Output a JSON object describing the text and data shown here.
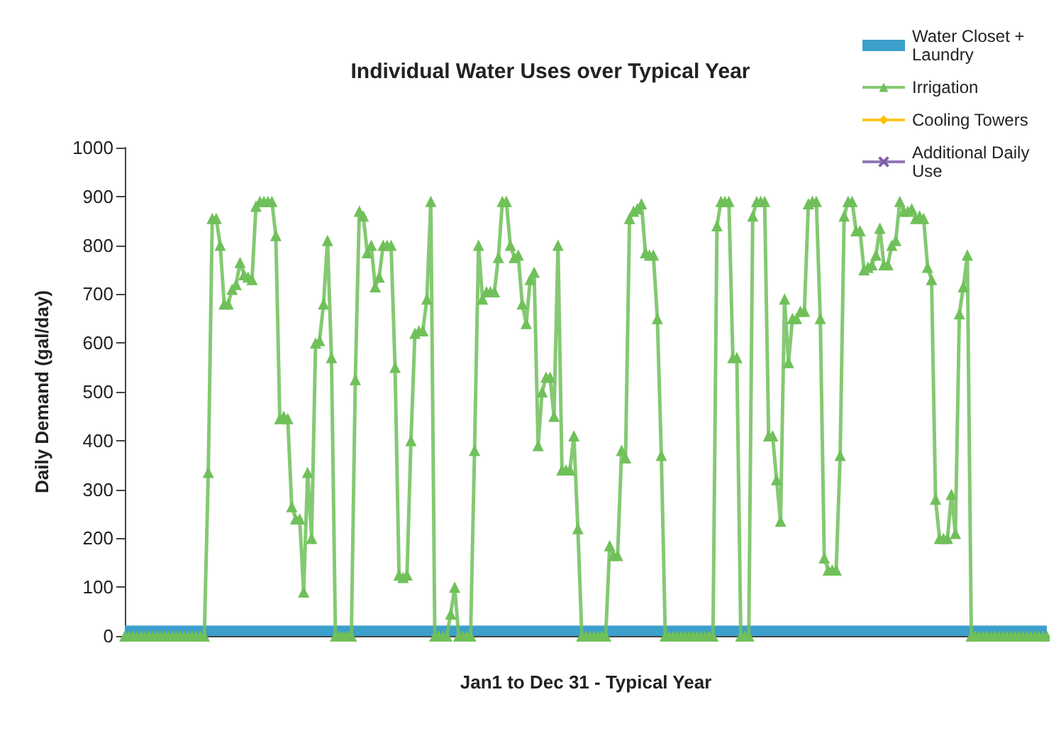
{
  "chart_data": {
    "type": "line",
    "title": "Individual Water Uses over Typical Year",
    "xlabel": "Jan1 to Dec 31 - Typical Year",
    "ylabel": "Daily Demand (gal/day)",
    "categories": [
      null,
      null,
      null,
      null,
      null,
      null,
      null,
      null,
      null,
      null,
      null,
      null,
      null,
      null,
      null,
      null,
      null,
      null,
      null,
      null,
      null,
      null,
      null,
      null,
      null,
      null,
      null,
      null,
      null,
      null,
      null,
      null,
      null,
      null,
      null,
      null,
      null,
      null,
      null,
      null,
      null,
      null,
      null,
      null,
      null,
      null,
      null,
      null,
      null,
      null,
      null,
      null,
      null,
      null,
      null,
      null,
      null,
      null,
      null,
      null,
      null,
      null,
      null,
      null,
      null,
      null,
      null,
      null,
      null,
      null,
      null,
      null,
      null,
      null,
      null,
      null,
      null,
      null,
      null,
      null,
      null,
      null,
      null,
      null,
      null,
      null,
      null,
      null,
      null,
      null,
      null,
      null,
      null,
      null,
      null,
      null,
      null,
      null,
      null,
      null,
      null,
      null,
      null,
      null,
      null,
      null,
      null,
      null,
      null,
      null,
      null,
      null,
      null,
      null,
      null,
      null,
      null,
      null,
      null,
      null,
      null,
      null,
      null,
      null,
      null,
      null,
      null,
      null,
      null,
      null,
      null,
      null,
      null,
      null,
      null,
      null,
      null,
      null,
      null,
      null,
      null,
      null,
      null,
      null,
      null,
      null,
      null,
      null,
      null,
      null,
      null,
      null,
      null,
      null,
      null,
      null,
      null,
      null,
      null,
      null,
      null,
      null,
      null,
      null,
      null,
      null,
      null,
      null,
      null,
      null,
      null,
      null,
      null,
      null,
      null,
      null,
      null,
      null,
      null,
      null,
      null,
      null,
      null,
      null,
      null,
      null,
      null,
      null,
      null,
      null,
      null,
      null,
      null,
      null,
      null,
      null,
      null,
      null,
      null,
      null,
      null,
      null,
      null,
      null,
      null,
      null,
      null,
      null,
      null,
      null,
      null,
      null,
      null,
      null,
      null,
      null,
      null,
      null,
      null,
      null,
      null,
      null,
      null,
      null,
      null,
      null,
      null,
      null,
      null,
      null,
      null,
      null,
      null
    ],
    "ylim": [
      0,
      1000
    ],
    "yticks": [
      0,
      100,
      200,
      300,
      400,
      500,
      600,
      700,
      800,
      900,
      1000
    ],
    "tick_labels": "y",
    "grid": false,
    "legend": "top right",
    "series": [
      {
        "name": "Water Closet + Laundry",
        "type": "area",
        "color": "#3c9fcc",
        "marker": "none",
        "values": [
          20,
          20,
          20,
          20,
          20,
          20,
          20,
          20,
          20,
          20,
          20,
          20,
          20,
          20,
          20,
          20,
          20,
          20,
          20,
          20,
          20,
          20,
          20,
          20,
          20,
          20,
          20,
          20,
          20,
          20,
          20,
          20,
          20,
          20,
          20,
          20,
          20,
          20,
          20,
          20,
          20,
          20,
          20,
          20,
          20,
          20,
          20,
          20,
          20,
          20,
          20,
          20,
          20,
          20,
          20,
          20,
          20,
          20,
          20,
          20,
          20,
          20,
          20,
          20,
          20,
          20,
          20,
          20,
          20,
          20,
          20,
          20,
          20,
          20,
          20,
          20,
          20,
          20,
          20,
          20,
          20,
          20,
          20,
          20,
          20,
          20,
          20,
          20,
          20,
          20,
          20,
          20,
          20,
          20,
          20,
          20,
          20,
          20,
          20,
          20,
          20,
          20,
          20,
          20,
          20,
          20,
          20,
          20,
          20,
          20,
          20,
          20,
          20,
          20,
          20,
          20,
          20,
          20,
          20,
          20,
          20,
          20,
          20,
          20,
          20,
          20,
          20,
          20,
          20,
          20,
          20,
          20,
          20,
          20,
          20,
          20,
          20,
          20,
          20,
          20,
          20,
          20,
          20,
          20,
          20,
          20,
          20,
          20,
          20,
          20,
          20,
          20,
          20,
          20,
          20,
          20,
          20,
          20,
          20,
          20,
          20,
          20,
          20,
          20,
          20,
          20,
          20,
          20,
          20,
          20,
          20,
          20,
          20,
          20,
          20,
          20,
          20,
          20,
          20,
          20,
          20,
          20,
          20,
          20,
          20,
          20,
          20,
          20,
          20,
          20,
          20,
          20,
          20,
          20,
          20,
          20,
          20,
          20,
          20,
          20,
          20,
          20,
          20,
          20,
          20,
          20,
          20,
          20,
          20,
          20,
          20,
          20,
          20,
          20,
          20,
          20,
          20,
          20,
          20,
          20,
          20,
          20,
          20,
          20,
          20,
          20,
          20,
          20,
          20,
          20,
          20,
          20,
          20
        ]
      },
      {
        "name": "Irrigation",
        "color": "#70c05a",
        "marker": "triangle",
        "values": [
          0,
          0,
          0,
          0,
          0,
          0,
          0,
          0,
          0,
          0,
          0,
          0,
          0,
          0,
          0,
          0,
          0,
          0,
          0,
          0,
          0,
          335,
          855,
          855,
          800,
          680,
          680,
          710,
          720,
          765,
          740,
          735,
          730,
          880,
          890,
          890,
          890,
          890,
          820,
          445,
          450,
          445,
          265,
          240,
          240,
          90,
          335,
          200,
          600,
          605,
          680,
          810,
          570,
          0,
          0,
          0,
          0,
          0,
          525,
          870,
          860,
          785,
          800,
          715,
          735,
          800,
          800,
          800,
          550,
          125,
          120,
          125,
          400,
          620,
          625,
          625,
          690,
          890,
          0,
          0,
          0,
          0,
          45,
          100,
          0,
          0,
          0,
          0,
          380,
          800,
          690,
          705,
          705,
          705,
          775,
          890,
          890,
          800,
          775,
          780,
          680,
          640,
          730,
          745,
          390,
          500,
          530,
          530,
          450,
          800,
          340,
          340,
          340,
          410,
          220,
          0,
          0,
          0,
          0,
          0,
          0,
          0,
          185,
          165,
          165,
          380,
          365,
          855,
          870,
          875,
          885,
          785,
          780,
          780,
          650,
          370,
          0,
          0,
          0,
          0,
          0,
          0,
          0,
          0,
          0,
          0,
          0,
          0,
          0,
          840,
          890,
          890,
          890,
          570,
          570,
          0,
          0,
          0,
          860,
          890,
          890,
          890,
          410,
          410,
          320,
          235,
          690,
          560,
          650,
          650,
          665,
          665,
          885,
          890,
          890,
          650,
          160,
          135,
          135,
          135,
          370,
          860,
          890,
          890,
          830,
          830,
          750,
          755,
          760,
          780,
          835,
          760,
          760,
          800,
          810,
          890,
          870,
          870,
          875,
          855,
          860,
          855,
          755,
          730,
          280,
          200,
          200,
          200,
          290,
          210,
          660,
          715,
          780,
          0,
          0,
          0,
          0,
          0,
          0,
          0,
          0,
          0,
          0,
          0,
          0,
          0,
          0,
          0,
          0,
          0,
          0,
          0,
          0
        ]
      },
      {
        "name": "Cooling Towers",
        "color": "#ffc000",
        "marker": "diamond",
        "values": [
          null,
          null,
          null,
          null,
          null,
          null,
          null,
          null,
          null,
          null,
          null,
          null,
          null,
          null,
          null,
          null,
          null,
          null,
          null,
          null,
          null,
          null,
          null,
          null,
          null,
          null,
          null,
          null,
          null,
          null,
          null,
          null,
          null,
          null,
          null,
          null,
          null,
          null,
          null,
          null,
          null,
          null,
          null,
          null,
          null,
          null,
          null,
          null,
          null,
          null,
          null,
          null,
          null,
          null,
          null,
          null,
          null,
          null,
          null,
          null,
          null,
          null,
          null,
          null,
          null,
          null,
          null,
          null,
          null,
          null,
          null,
          null,
          null,
          null,
          null,
          null,
          null,
          null,
          null,
          null,
          null,
          null,
          null,
          null,
          null,
          null,
          null,
          null,
          null,
          null,
          null,
          null,
          null,
          null,
          null,
          null,
          null,
          null,
          null,
          null,
          null,
          null,
          null,
          null,
          null,
          null,
          null,
          null,
          null,
          null,
          null,
          null,
          null,
          null,
          null,
          null,
          null,
          null,
          null,
          null,
          null,
          null,
          null,
          null,
          null,
          null,
          null,
          null,
          null,
          null,
          null,
          null,
          null,
          null,
          null,
          null,
          null,
          null,
          null,
          null,
          null,
          null,
          null,
          null,
          null,
          null,
          null,
          null,
          null,
          null,
          null,
          null,
          null,
          null,
          null,
          null,
          null,
          null,
          null,
          null,
          null,
          null,
          null,
          null,
          null,
          null,
          null,
          null,
          null,
          null,
          null,
          null,
          null,
          null,
          null,
          null,
          null,
          null,
          null,
          null,
          null,
          null,
          null,
          null,
          null,
          null,
          null,
          null,
          null,
          null,
          null,
          null,
          null,
          null,
          null,
          null,
          null,
          null,
          null,
          null,
          null,
          null,
          null,
          null,
          null,
          null,
          null,
          null,
          null,
          null,
          null,
          null,
          null,
          null,
          null,
          null,
          null,
          null,
          null,
          null,
          null,
          null,
          null,
          null,
          null,
          null,
          null,
          null,
          null,
          null,
          null,
          null,
          null
        ]
      },
      {
        "name": "Additional Daily Use",
        "color": "#7f60a8",
        "marker": "cross",
        "values": [
          null,
          null,
          null,
          null,
          null,
          null,
          null,
          null,
          null,
          null,
          null,
          null,
          null,
          null,
          null,
          null,
          null,
          null,
          null,
          null,
          null,
          null,
          null,
          null,
          null,
          null,
          null,
          null,
          null,
          null,
          null,
          null,
          null,
          null,
          null,
          null,
          null,
          null,
          null,
          null,
          null,
          null,
          null,
          null,
          null,
          null,
          null,
          null,
          null,
          null,
          null,
          null,
          null,
          null,
          null,
          null,
          null,
          null,
          null,
          null,
          null,
          null,
          null,
          null,
          null,
          null,
          null,
          null,
          null,
          null,
          null,
          null,
          null,
          null,
          null,
          null,
          null,
          null,
          null,
          null,
          null,
          null,
          null,
          null,
          null,
          null,
          null,
          null,
          null,
          null,
          null,
          null,
          null,
          null,
          null,
          null,
          null,
          null,
          null,
          null,
          null,
          null,
          null,
          null,
          null,
          null,
          null,
          null,
          null,
          null,
          null,
          null,
          null,
          null,
          null,
          null,
          null,
          null,
          null,
          null,
          null,
          null,
          null,
          null,
          null,
          null,
          null,
          null,
          null,
          null,
          null,
          null,
          null,
          null,
          null,
          null,
          null,
          null,
          null,
          null,
          null,
          null,
          null,
          null,
          null,
          null,
          null,
          null,
          null,
          null,
          null,
          null,
          null,
          null,
          null,
          null,
          null,
          null,
          null,
          null,
          null,
          null,
          null,
          null,
          null,
          null,
          null,
          null,
          null,
          null,
          null,
          null,
          null,
          null,
          null,
          null,
          null,
          null,
          null,
          null,
          null,
          null,
          null,
          null,
          null,
          null,
          null,
          null,
          null,
          null,
          null,
          null,
          null,
          null,
          null,
          null,
          null,
          null,
          null,
          null,
          null,
          null,
          null,
          null,
          null,
          null,
          null,
          null,
          null,
          null,
          null,
          null,
          null,
          null,
          null,
          null,
          null,
          null,
          null,
          null,
          null,
          null,
          null,
          null,
          null,
          null,
          null,
          null,
          null,
          null,
          null,
          null,
          null
        ]
      }
    ]
  }
}
